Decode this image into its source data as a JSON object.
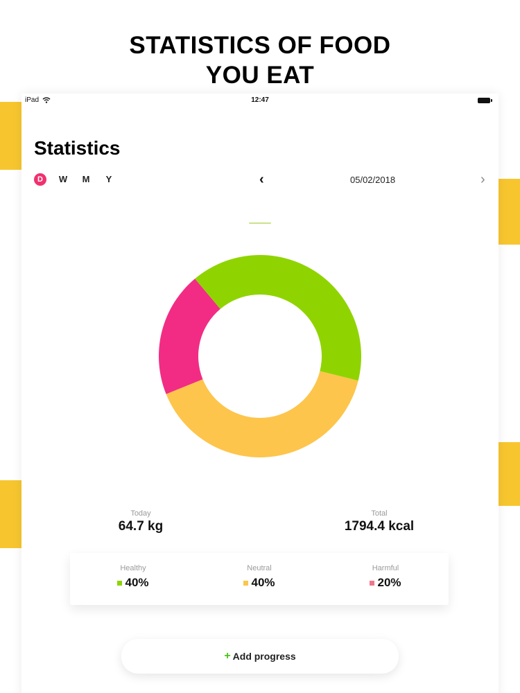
{
  "headline": {
    "line1": "STATISTICS OF FOOD",
    "line2": "YOU EAT"
  },
  "status_bar": {
    "device": "iPad",
    "time": "12:47"
  },
  "page": {
    "title": "Statistics"
  },
  "periods": [
    {
      "label": "D",
      "active": true
    },
    {
      "label": "W",
      "active": false
    },
    {
      "label": "M",
      "active": false
    },
    {
      "label": "Y",
      "active": false
    }
  ],
  "date_nav": {
    "date": "05/02/2018",
    "prev": "‹",
    "next": "›"
  },
  "colors": {
    "healthy": "#8fd400",
    "neutral": "#fdc54b",
    "harmful": "#f22c84",
    "accent": "#f0316f",
    "band": "#f7c62f"
  },
  "chart_data": {
    "type": "pie",
    "donut": true,
    "slices": [
      {
        "label": "Healthy",
        "value": 40,
        "color": "#8fd400"
      },
      {
        "label": "Neutral",
        "value": 40,
        "color": "#fdc54b"
      },
      {
        "label": "Harmful",
        "value": 20,
        "color": "#f22c84"
      }
    ]
  },
  "totals": {
    "today": {
      "label": "Today",
      "value": "64.7 kg"
    },
    "total": {
      "label": "Total",
      "value": "1794.4 kcal"
    }
  },
  "breakdown": [
    {
      "label": "Healthy",
      "value": "40%",
      "color": "#8fd400"
    },
    {
      "label": "Neutral",
      "value": "40%",
      "color": "#fdc54b"
    },
    {
      "label": "Harmful",
      "value": "20%",
      "color": "#f0768c"
    }
  ],
  "add_button": {
    "icon": "+",
    "label": "Add progress"
  }
}
